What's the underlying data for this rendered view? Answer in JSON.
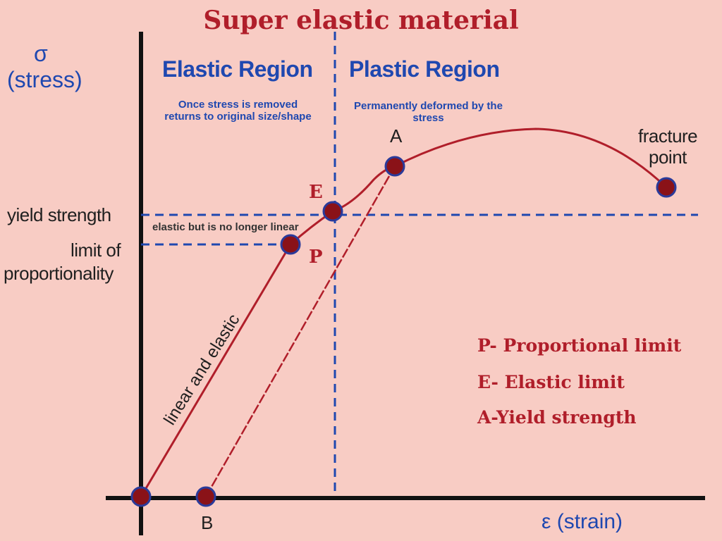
{
  "title": "Super elastic material",
  "axes": {
    "y_symbol": "σ",
    "y_label": "(stress)",
    "x_label": "ε (strain)"
  },
  "regions": {
    "elastic_title": "Elastic Region",
    "elastic_note_1": "Once stress is removed",
    "elastic_note_2": "returns to original size/shape",
    "plastic_title": "Plastic Region",
    "plastic_note_1": "Permanently deformed by the",
    "plastic_note_2": "stress"
  },
  "levels": {
    "yield_strength": "yield strength",
    "limit_of_1": "limit of",
    "limit_of_2": "proportionality",
    "nonlinear_note": "elastic but is no longer linear"
  },
  "curve_labels": {
    "linear_elastic": "linear and elastic",
    "fracture_1": "fracture",
    "fracture_2": "point"
  },
  "points": {
    "A": "A",
    "E": "E",
    "P": "P",
    "B": "B"
  },
  "legend": [
    "P- Proportional limit",
    "E- Elastic limit",
    "A-Yield strength"
  ],
  "colors": {
    "background": "#f8ccc4",
    "curve": "#b01e2a",
    "dashed": "#1f48b0",
    "axis": "#111111",
    "marker_fill": "#8a1218",
    "marker_ring": "#2a3a9a"
  }
}
